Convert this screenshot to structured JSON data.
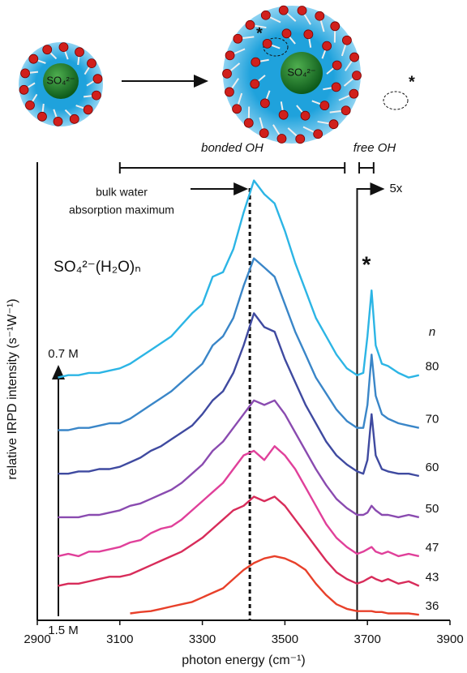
{
  "chart_data": {
    "type": "line",
    "sphere_label_small": "SO₄²⁻",
    "sphere_label_large": "SO₄²⁻",
    "star_left": "*",
    "star_right": "*",
    "bonded_label": "bonded OH",
    "bonded_range": [
      3100,
      3645
    ],
    "free_label": "free OH",
    "free_range": [
      3680,
      3715
    ],
    "bulk_label": [
      "bulk water",
      "absorption maximum"
    ],
    "bulk_water_max": 3415,
    "scale_break": 3675,
    "scale_label": "5x",
    "free_star": "*",
    "formula": "SO₄²⁻(H₂O)ₙ",
    "n_label": "n",
    "conc_top": "0.7 M",
    "conc_bottom": "1.5 M",
    "xlabel": "photon energy (cm⁻¹)",
    "ylabel": "relative IRPD intensity (s⁻¹W⁻¹)",
    "xlim": [
      2900,
      3900
    ],
    "xticks": [
      2900,
      3100,
      3300,
      3500,
      3700,
      3900
    ],
    "ylim": [
      0,
      100
    ],
    "x": [
      2950,
      2975,
      3000,
      3025,
      3050,
      3075,
      3100,
      3125,
      3150,
      3175,
      3200,
      3225,
      3250,
      3275,
      3300,
      3325,
      3350,
      3375,
      3400,
      3425,
      3450,
      3475,
      3500,
      3525,
      3550,
      3575,
      3600,
      3625,
      3650,
      3675,
      3690,
      3700,
      3710,
      3720,
      3735,
      3750,
      3775,
      3800,
      3825
    ],
    "series": [
      {
        "name": "80",
        "color": "#2cb5e5",
        "values": [
          53,
          53.5,
          53.5,
          54,
          54,
          54.5,
          55,
          56,
          57.5,
          59,
          60.5,
          62,
          64.5,
          67,
          69,
          75,
          76,
          81,
          89,
          96,
          93,
          91,
          85,
          78,
          72,
          66,
          62,
          58,
          55,
          53.5,
          54,
          62,
          72,
          60,
          56,
          55.5,
          54,
          53,
          53.5
        ]
      },
      {
        "name": "70",
        "color": "#3a86c8",
        "values": [
          41.5,
          41.5,
          42,
          42,
          42.5,
          43,
          43,
          44,
          45.5,
          47,
          48.5,
          50,
          52,
          54,
          56,
          60,
          62,
          66,
          73,
          79,
          77,
          75,
          69,
          63,
          58,
          53,
          49.5,
          46,
          43.5,
          42,
          42,
          47,
          58,
          49,
          45,
          44,
          43,
          42.5,
          42
        ]
      },
      {
        "name": "60",
        "color": "#3f4aa0",
        "values": [
          32,
          32,
          32.5,
          32.5,
          33,
          33,
          33.5,
          34.5,
          35.5,
          37,
          38,
          39.5,
          41,
          42.5,
          45,
          48,
          50,
          54,
          60,
          67,
          64,
          63,
          57,
          52,
          47,
          43,
          39,
          36,
          34,
          32.5,
          32,
          35,
          45,
          36,
          33,
          32.5,
          32,
          32,
          31.5
        ]
      },
      {
        "name": "50",
        "color": "#8a4bb0",
        "values": [
          22.5,
          22.5,
          22.5,
          23,
          23,
          23.5,
          24,
          25,
          25.5,
          26.5,
          27.5,
          28.5,
          30,
          32,
          34,
          37,
          39,
          42,
          45,
          48,
          47,
          48,
          45,
          41,
          37,
          33,
          29.5,
          26.5,
          24.5,
          23,
          23,
          23.5,
          25,
          24,
          23,
          23,
          22.5,
          23,
          22.5
        ]
      },
      {
        "name": "47",
        "color": "#e0409a",
        "values": [
          14,
          14.5,
          14,
          15,
          15,
          15.5,
          16,
          17,
          17.5,
          19,
          20,
          20.5,
          22,
          24,
          26,
          28,
          30,
          33,
          36,
          37,
          35,
          38,
          36,
          33,
          29,
          25,
          21,
          18,
          16,
          14.5,
          15,
          15.5,
          16,
          15,
          14.5,
          15,
          14,
          14.5,
          14
        ]
      },
      {
        "name": "43",
        "color": "#d82c5a",
        "values": [
          7.5,
          8,
          8,
          8.5,
          9,
          9.5,
          9.5,
          10,
          11,
          12,
          13,
          14,
          15,
          16.5,
          18,
          20,
          22,
          24,
          25,
          27,
          26,
          27,
          25,
          22,
          19,
          16,
          13,
          10.5,
          9,
          8,
          8.5,
          9,
          9.5,
          9,
          8.5,
          9,
          8,
          8.5,
          7.5
        ]
      },
      {
        "name": "36",
        "color": "#e8402a",
        "values": [
          null,
          null,
          null,
          null,
          null,
          null,
          null,
          1.5,
          1.8,
          2,
          2.5,
          3,
          3.5,
          4,
          5,
          6,
          7,
          9,
          11,
          12.5,
          13.5,
          14,
          13.5,
          12.5,
          11,
          8,
          5.5,
          3.5,
          2.5,
          2,
          2,
          2,
          2,
          1.8,
          1.8,
          1.5,
          1.5,
          1.5,
          1.2
        ]
      }
    ]
  }
}
